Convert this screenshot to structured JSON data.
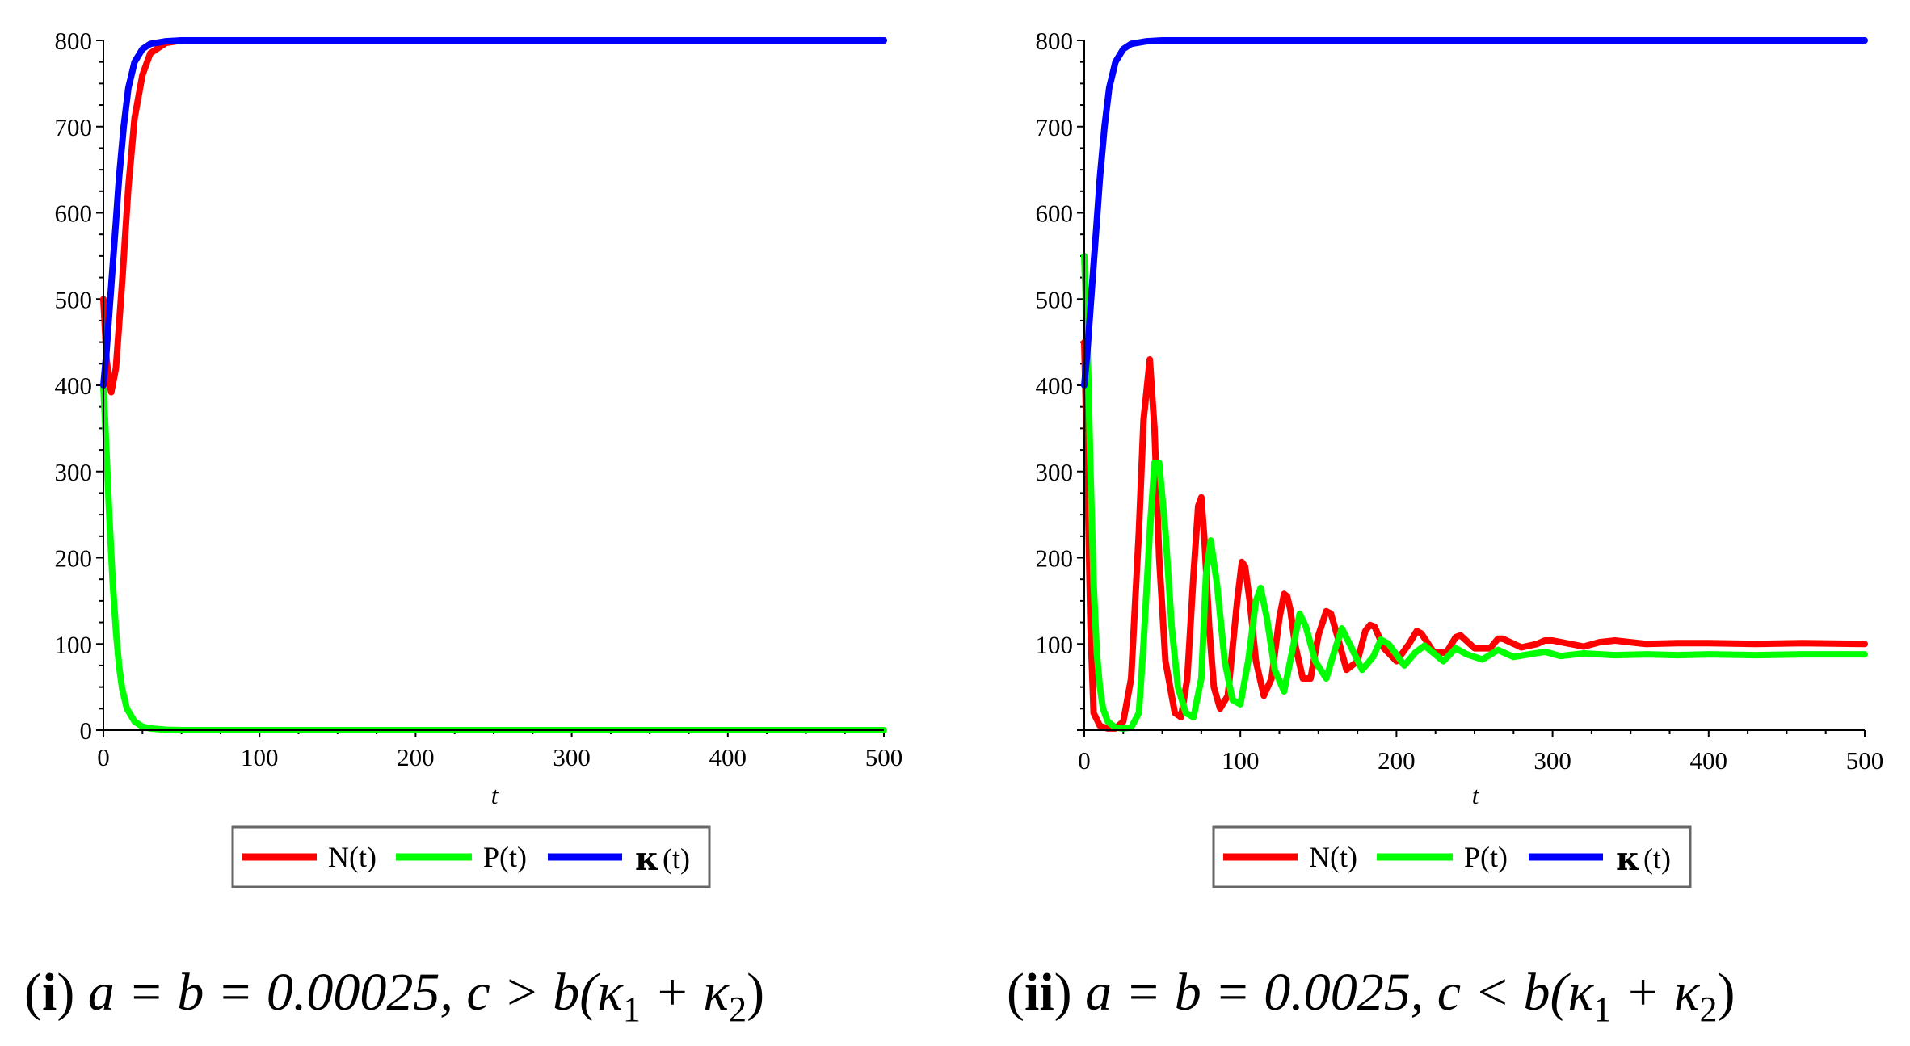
{
  "colors": {
    "N": "#ff0000",
    "P": "#00ff00",
    "kappa": "#0000ff"
  },
  "panels": [
    {
      "caption": {
        "label": "i",
        "text": "a = b = 0.00025, c > b(κ",
        "sub1": "1",
        "plus": " + κ",
        "sub2": "2",
        "close": ")"
      },
      "legend": {
        "n": "N(t)",
        "p": "P(t)",
        "kappa_sym": "κ",
        "kappa_arg": "(t)"
      },
      "chart_data": {
        "type": "line",
        "xlabel": "t",
        "xlim": [
          0,
          500
        ],
        "ylim": [
          0,
          800
        ],
        "xticks": [
          0,
          100,
          200,
          300,
          400,
          500
        ],
        "yticks": [
          0,
          100,
          200,
          300,
          400,
          500,
          600,
          700,
          800
        ],
        "series": [
          {
            "name": "N(t)",
            "color": "#ff0000",
            "x": [
              0,
              2,
              4,
              5,
              8,
              12,
              16,
              20,
              25,
              30,
              40,
              50,
              60,
              80,
              100,
              200,
              300,
              400,
              500
            ],
            "y": [
              500,
              430,
              400,
              392,
              420,
              520,
              630,
              710,
              760,
              785,
              797,
              800,
              800,
              800,
              800,
              800,
              800,
              800,
              800
            ]
          },
          {
            "name": "P(t)",
            "color": "#00ff00",
            "x": [
              0,
              2,
              4,
              6,
              8,
              10,
              12,
              15,
              20,
              25,
              30,
              40,
              50,
              60,
              100,
              200,
              300,
              400,
              500
            ],
            "y": [
              400,
              320,
              240,
              170,
              115,
              75,
              48,
              25,
              10,
              4,
              2,
              0.5,
              0,
              0,
              0,
              0,
              0,
              0,
              0
            ]
          },
          {
            "name": "κ(t)",
            "color": "#0000ff",
            "x": [
              0,
              2,
              4,
              6,
              8,
              10,
              13,
              16,
              20,
              25,
              30,
              40,
              50,
              100,
              200,
              300,
              400,
              500
            ],
            "y": [
              400,
              440,
              490,
              540,
              590,
              640,
              700,
              745,
              775,
              790,
              796,
              799,
              800,
              800,
              800,
              800,
              800,
              800
            ]
          }
        ]
      }
    },
    {
      "caption": {
        "label": "ii",
        "text": "a = b = 0.0025, c < b(κ",
        "sub1": "1",
        "plus": " + κ",
        "sub2": "2",
        "close": ")"
      },
      "legend": {
        "n": "N(t)",
        "p": "P(t)",
        "kappa_sym": "κ",
        "kappa_arg": "(t)"
      },
      "chart_data": {
        "type": "line",
        "xlabel": "t",
        "xlim": [
          0,
          500
        ],
        "ylim": [
          0,
          800
        ],
        "xticks": [
          0,
          100,
          200,
          300,
          400,
          500
        ],
        "yticks": [
          100,
          200,
          300,
          400,
          500,
          600,
          700,
          800
        ],
        "series": [
          {
            "name": "N(t)",
            "color": "#ff0000",
            "x": [
              0,
              2,
              4,
              6,
              10,
              15,
              20,
              25,
              30,
              35,
              38,
              42,
              45,
              48,
              52,
              58,
              62,
              66,
              70,
              73,
              75,
              77,
              80,
              83,
              87,
              92,
              98,
              101,
              103,
              106,
              110,
              115,
              120,
              125,
              128,
              130,
              132,
              135,
              140,
              145,
              150,
              155,
              158,
              162,
              168,
              175,
              180,
              183,
              186,
              192,
              200,
              208,
              213,
              216,
              224,
              232,
              238,
              241,
              250,
              260,
              265,
              268,
              280,
              290,
              295,
              300,
              320,
              330,
              340,
              360,
              380,
              400,
              430,
              460,
              500
            ],
            "y": [
              450,
              300,
              120,
              20,
              5,
              2,
              2,
              10,
              60,
              230,
              360,
              430,
              350,
              200,
              80,
              20,
              15,
              60,
              180,
              260,
              270,
              220,
              120,
              50,
              25,
              40,
              150,
              195,
              190,
              150,
              80,
              40,
              60,
              130,
              158,
              155,
              140,
              100,
              60,
              60,
              110,
              138,
              135,
              110,
              70,
              80,
              115,
              122,
              120,
              95,
              80,
              100,
              115,
              112,
              90,
              90,
              108,
              110,
              95,
              95,
              106,
              106,
              96,
              100,
              104,
              104,
              97,
              102,
              104,
              100,
              101,
              101,
              100,
              101,
              100
            ]
          },
          {
            "name": "P(t)",
            "color": "#00ff00",
            "x": [
              0,
              2,
              4,
              6,
              8,
              10,
              12,
              15,
              20,
              25,
              30,
              35,
              38,
              42,
              45,
              48,
              52,
              56,
              60,
              65,
              70,
              75,
              78,
              81,
              85,
              90,
              95,
              100,
              105,
              110,
              113,
              117,
              122,
              128,
              133,
              138,
              142,
              148,
              155,
              160,
              165,
              170,
              178,
              185,
              190,
              195,
              205,
              212,
              218,
              230,
              238,
              245,
              255,
              265,
              275,
              285,
              295,
              305,
              320,
              340,
              360,
              380,
              400,
              430,
              460,
              500
            ],
            "y": [
              550,
              450,
              300,
              170,
              90,
              50,
              25,
              10,
              3,
              2,
              3,
              20,
              100,
              230,
              310,
              310,
              230,
              120,
              50,
              20,
              15,
              60,
              180,
              220,
              170,
              80,
              35,
              30,
              80,
              150,
              165,
              130,
              70,
              45,
              90,
              135,
              120,
              80,
              60,
              90,
              118,
              100,
              70,
              85,
              105,
              100,
              75,
              90,
              98,
              80,
              95,
              88,
              82,
              93,
              85,
              88,
              91,
              86,
              89,
              87,
              88,
              87,
              88,
              87,
              88,
              88
            ]
          },
          {
            "name": "κ(t)",
            "color": "#0000ff",
            "x": [
              0,
              2,
              4,
              6,
              8,
              10,
              13,
              16,
              20,
              25,
              30,
              40,
              50,
              100,
              200,
              300,
              400,
              500
            ],
            "y": [
              400,
              440,
              490,
              540,
              590,
              640,
              700,
              745,
              775,
              790,
              796,
              799,
              800,
              800,
              800,
              800,
              800,
              800
            ]
          }
        ]
      }
    }
  ]
}
